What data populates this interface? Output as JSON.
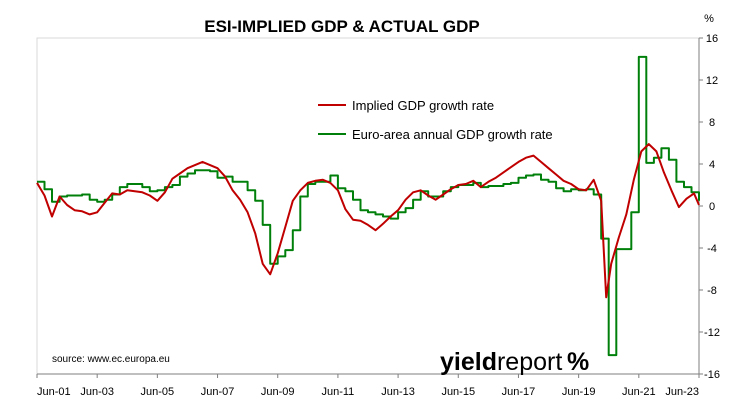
{
  "chart_data": {
    "type": "line",
    "title": "ESI-IMPLIED GDP & ACTUAL GDP",
    "unit_label": "%",
    "ylim": [
      -16,
      16
    ],
    "y_ticks": [
      "16",
      "12",
      "8",
      "4",
      "0",
      "-4",
      "-8",
      "-12",
      "-16"
    ],
    "x_ticks": [
      "Jun-01",
      "Jun-03",
      "Jun-05",
      "Jun-07",
      "Jun-09",
      "Jun-11",
      "Jun-13",
      "Jun-15",
      "Jun-17",
      "Jun-19",
      "Jun-21",
      "Jun-23"
    ],
    "xlim": [
      "Jun-01",
      "Jun-23"
    ],
    "y_axis_side": "right",
    "legend_position": "upper-middle",
    "source": "source: www.ec.europa.eu",
    "logo": {
      "part1": "yield",
      "part2": "report",
      "symbol": "%"
    },
    "series": [
      {
        "name": "Implied GDP growth rate",
        "color": "#c00000",
        "points": [
          [
            "Jun-01",
            2.2
          ],
          [
            "Sep-01",
            1.0
          ],
          [
            "Dec-01",
            -1.0
          ],
          [
            "Mar-02",
            0.9
          ],
          [
            "Jun-02",
            0.1
          ],
          [
            "Sep-02",
            -0.4
          ],
          [
            "Dec-02",
            -0.5
          ],
          [
            "Mar-03",
            -0.8
          ],
          [
            "Jun-03",
            -0.6
          ],
          [
            "Sep-03",
            0.3
          ],
          [
            "Dec-03",
            1.2
          ],
          [
            "Mar-04",
            1.1
          ],
          [
            "Jun-04",
            1.5
          ],
          [
            "Sep-04",
            1.4
          ],
          [
            "Dec-04",
            1.3
          ],
          [
            "Mar-05",
            1.0
          ],
          [
            "Jun-05",
            0.5
          ],
          [
            "Sep-05",
            1.3
          ],
          [
            "Dec-05",
            2.6
          ],
          [
            "Mar-06",
            3.1
          ],
          [
            "Jun-06",
            3.6
          ],
          [
            "Sep-06",
            3.9
          ],
          [
            "Dec-06",
            4.2
          ],
          [
            "Mar-07",
            3.9
          ],
          [
            "Jun-07",
            3.6
          ],
          [
            "Sep-07",
            2.8
          ],
          [
            "Dec-07",
            1.5
          ],
          [
            "Mar-08",
            0.6
          ],
          [
            "Jun-08",
            -0.6
          ],
          [
            "Sep-08",
            -2.6
          ],
          [
            "Dec-08",
            -5.5
          ],
          [
            "Mar-09",
            -6.5
          ],
          [
            "Jun-09",
            -4.5
          ],
          [
            "Sep-09",
            -2.0
          ],
          [
            "Dec-09",
            0.5
          ],
          [
            "Mar-10",
            1.5
          ],
          [
            "Jun-10",
            2.2
          ],
          [
            "Sep-10",
            2.4
          ],
          [
            "Dec-10",
            2.5
          ],
          [
            "Mar-11",
            2.2
          ],
          [
            "Jun-11",
            1.5
          ],
          [
            "Sep-11",
            -0.3
          ],
          [
            "Dec-11",
            -1.3
          ],
          [
            "Mar-12",
            -1.4
          ],
          [
            "Jun-12",
            -1.8
          ],
          [
            "Sep-12",
            -2.3
          ],
          [
            "Dec-12",
            -1.7
          ],
          [
            "Mar-13",
            -1.0
          ],
          [
            "Jun-13",
            -0.4
          ],
          [
            "Sep-13",
            0.6
          ],
          [
            "Dec-13",
            1.3
          ],
          [
            "Mar-14",
            1.5
          ],
          [
            "Jun-14",
            1.0
          ],
          [
            "Sep-14",
            0.6
          ],
          [
            "Dec-14",
            1.1
          ],
          [
            "Mar-15",
            1.6
          ],
          [
            "Jun-15",
            2.0
          ],
          [
            "Sep-15",
            2.1
          ],
          [
            "Dec-15",
            2.4
          ],
          [
            "Mar-16",
            1.8
          ],
          [
            "Jun-16",
            2.3
          ],
          [
            "Sep-16",
            2.7
          ],
          [
            "Dec-16",
            3.2
          ],
          [
            "Mar-17",
            3.7
          ],
          [
            "Jun-17",
            4.2
          ],
          [
            "Sep-17",
            4.6
          ],
          [
            "Dec-17",
            4.8
          ],
          [
            "Mar-18",
            4.2
          ],
          [
            "Jun-18",
            3.6
          ],
          [
            "Sep-18",
            3.0
          ],
          [
            "Dec-18",
            2.4
          ],
          [
            "Mar-19",
            2.1
          ],
          [
            "Jun-19",
            1.6
          ],
          [
            "Sep-19",
            1.5
          ],
          [
            "Dec-19",
            2.5
          ],
          [
            "Mar-20",
            0.5
          ],
          [
            "May-20",
            -8.7
          ],
          [
            "Jul-20",
            -5.5
          ],
          [
            "Oct-20",
            -3.0
          ],
          [
            "Jan-21",
            -0.8
          ],
          [
            "Apr-21",
            2.5
          ],
          [
            "Jul-21",
            5.2
          ],
          [
            "Oct-21",
            5.9
          ],
          [
            "Jan-22",
            5.2
          ],
          [
            "Apr-22",
            3.2
          ],
          [
            "Jul-22",
            1.5
          ],
          [
            "Oct-22",
            -0.1
          ],
          [
            "Jan-23",
            0.7
          ],
          [
            "Apr-23",
            1.2
          ],
          [
            "Jun-23",
            0.1
          ]
        ]
      },
      {
        "name": "Euro-area annual GDP growth rate",
        "color": "#00800a",
        "points": [
          [
            "Jun-01",
            2.3
          ],
          [
            "Sep-01",
            1.6
          ],
          [
            "Dec-01",
            0.4
          ],
          [
            "Mar-02",
            0.9
          ],
          [
            "Jun-02",
            1.0
          ],
          [
            "Sep-02",
            1.0
          ],
          [
            "Dec-02",
            1.1
          ],
          [
            "Mar-03",
            0.6
          ],
          [
            "Jun-03",
            0.4
          ],
          [
            "Sep-03",
            0.6
          ],
          [
            "Dec-03",
            1.1
          ],
          [
            "Mar-04",
            1.8
          ],
          [
            "Jun-04",
            2.1
          ],
          [
            "Sep-04",
            2.1
          ],
          [
            "Dec-04",
            1.8
          ],
          [
            "Mar-05",
            1.4
          ],
          [
            "Jun-05",
            1.5
          ],
          [
            "Sep-05",
            1.8
          ],
          [
            "Dec-05",
            2.0
          ],
          [
            "Mar-06",
            2.8
          ],
          [
            "Jun-06",
            3.1
          ],
          [
            "Sep-06",
            3.4
          ],
          [
            "Dec-06",
            3.4
          ],
          [
            "Mar-07",
            3.3
          ],
          [
            "Jun-07",
            2.7
          ],
          [
            "Sep-07",
            2.8
          ],
          [
            "Dec-07",
            2.3
          ],
          [
            "Mar-08",
            2.3
          ],
          [
            "Jun-08",
            1.5
          ],
          [
            "Sep-08",
            0.5
          ],
          [
            "Dec-08",
            -1.8
          ],
          [
            "Mar-09",
            -5.5
          ],
          [
            "Jun-09",
            -4.8
          ],
          [
            "Sep-09",
            -4.2
          ],
          [
            "Dec-09",
            -2.3
          ],
          [
            "Mar-10",
            0.9
          ],
          [
            "Jun-10",
            2.1
          ],
          [
            "Sep-10",
            2.3
          ],
          [
            "Dec-10",
            2.3
          ],
          [
            "Mar-11",
            2.9
          ],
          [
            "Jun-11",
            1.7
          ],
          [
            "Sep-11",
            1.4
          ],
          [
            "Dec-11",
            0.6
          ],
          [
            "Mar-12",
            -0.4
          ],
          [
            "Jun-12",
            -0.6
          ],
          [
            "Sep-12",
            -0.8
          ],
          [
            "Dec-12",
            -1.0
          ],
          [
            "Mar-13",
            -1.2
          ],
          [
            "Jun-13",
            -0.6
          ],
          [
            "Sep-13",
            -0.2
          ],
          [
            "Dec-13",
            0.6
          ],
          [
            "Mar-14",
            1.4
          ],
          [
            "Jun-14",
            0.9
          ],
          [
            "Sep-14",
            0.9
          ],
          [
            "Dec-14",
            1.4
          ],
          [
            "Mar-15",
            1.8
          ],
          [
            "Jun-15",
            2.0
          ],
          [
            "Sep-15",
            2.0
          ],
          [
            "Dec-15",
            2.2
          ],
          [
            "Mar-16",
            1.8
          ],
          [
            "Jun-16",
            1.9
          ],
          [
            "Sep-16",
            1.9
          ],
          [
            "Dec-16",
            2.1
          ],
          [
            "Mar-17",
            2.2
          ],
          [
            "Jun-17",
            2.7
          ],
          [
            "Sep-17",
            2.9
          ],
          [
            "Dec-17",
            3.0
          ],
          [
            "Mar-18",
            2.5
          ],
          [
            "Jun-18",
            2.3
          ],
          [
            "Sep-18",
            1.7
          ],
          [
            "Dec-18",
            1.4
          ],
          [
            "Mar-19",
            1.6
          ],
          [
            "Jun-19",
            1.5
          ],
          [
            "Sep-19",
            1.6
          ],
          [
            "Dec-19",
            1.1
          ],
          [
            "Mar-20",
            -3.1
          ],
          [
            "Jun-20",
            -14.2
          ],
          [
            "Sep-20",
            -4.1
          ],
          [
            "Dec-20",
            -4.1
          ],
          [
            "Mar-21",
            -0.6
          ],
          [
            "Jun-21",
            14.2
          ],
          [
            "Sep-21",
            4.1
          ],
          [
            "Dec-21",
            4.6
          ],
          [
            "Mar-22",
            5.5
          ],
          [
            "Jun-22",
            4.4
          ],
          [
            "Sep-22",
            2.3
          ],
          [
            "Dec-22",
            1.8
          ],
          [
            "Mar-23",
            1.3
          ],
          [
            "Jun-23",
            0.5
          ]
        ]
      }
    ]
  }
}
